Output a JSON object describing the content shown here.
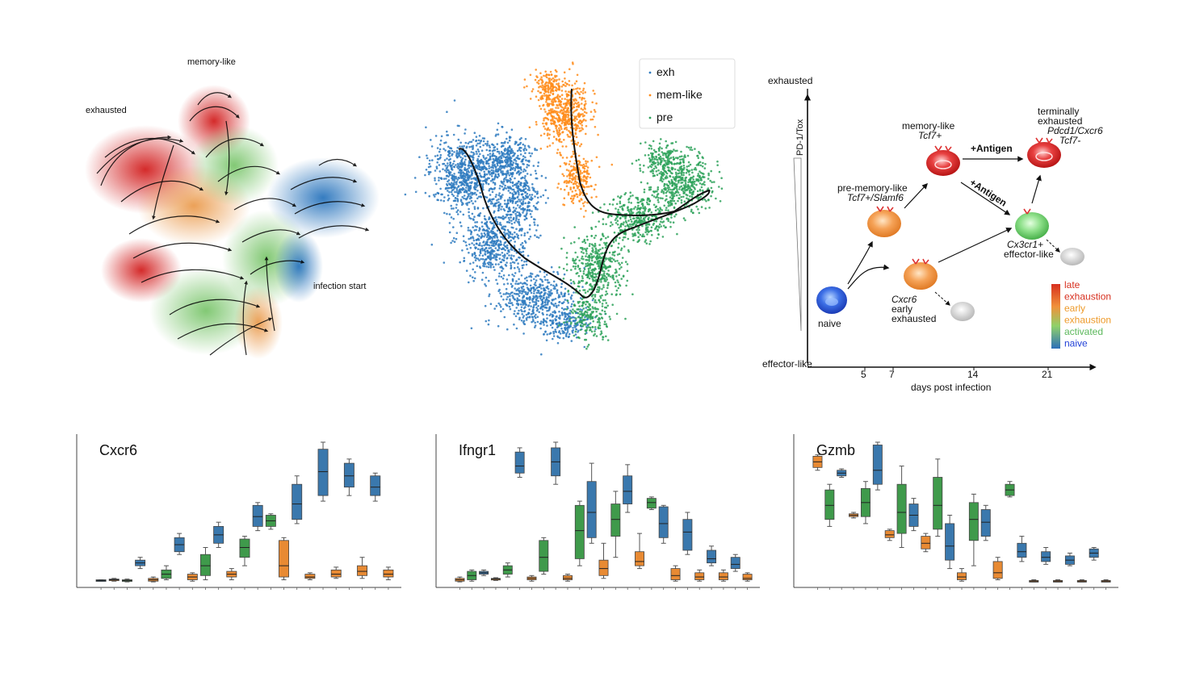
{
  "panels": {
    "velocity": {
      "labels": {
        "memory": "memory-like",
        "exhausted": "exhausted",
        "infection": "infection start"
      }
    },
    "umap": {
      "legend": [
        "exh",
        "mem-like",
        "pre"
      ]
    },
    "scheme": {
      "y_top": "exhausted",
      "y_bottom": "effector-like",
      "y_axis_label": "PD-1/Tox",
      "x_label": "days post infection",
      "x_ticks": [
        "5",
        "7",
        "14",
        "21"
      ],
      "cells": {
        "naive": "naive",
        "pre_mem_1": "pre-memory-like",
        "pre_mem_2": "Tcf7+/Slamf6",
        "mem_1": "memory-like",
        "mem_2": "Tcf7+",
        "term_1": "terminally",
        "term_2": "exhausted",
        "term_3": "Pdcd1/Cxcr6",
        "term_4": "Tcf7-",
        "early_1": "Cxcr6",
        "early_2": "early",
        "early_3": "exhausted",
        "eff_1": "Cx3cr1+",
        "eff_2": "effector-like"
      },
      "arrows": {
        "antigen_top": "+Antigen",
        "antigen_diag": "+Antigen"
      },
      "colorbar": {
        "labels": [
          "late",
          "exhaustion",
          "early",
          "exhaustion",
          "activated",
          "naive"
        ],
        "colors": [
          "#d7301f",
          "#d7301f",
          "#ee9a2a",
          "#ee9a2a",
          "#5cb85c",
          "#1f3fd6"
        ]
      }
    }
  },
  "colors": {
    "blue": "#3a78ad",
    "orange": "#e88a33",
    "green": "#3f9a4b",
    "umap_blue": "#2f7bbf",
    "umap_orange": "#ff8c1a",
    "umap_green": "#2ea25a"
  },
  "chart_data": [
    {
      "type": "box",
      "title": "Cxcr6",
      "ylim": [
        0,
        1
      ],
      "boxes": [
        {
          "c": "blue",
          "q1": 0.01,
          "med": 0.015,
          "q3": 0.02,
          "lo": 0.01,
          "hi": 0.02
        },
        {
          "c": "orange",
          "q1": 0.015,
          "med": 0.02,
          "q3": 0.025,
          "lo": 0.01,
          "hi": 0.03
        },
        {
          "c": "green",
          "q1": 0.01,
          "med": 0.015,
          "q3": 0.02,
          "lo": 0.005,
          "hi": 0.025
        },
        {
          "c": "blue",
          "q1": 0.12,
          "med": 0.14,
          "q3": 0.16,
          "lo": 0.1,
          "hi": 0.18
        },
        {
          "c": "orange",
          "q1": 0.01,
          "med": 0.02,
          "q3": 0.03,
          "lo": 0.005,
          "hi": 0.04
        },
        {
          "c": "green",
          "q1": 0.03,
          "med": 0.06,
          "q3": 0.09,
          "lo": 0.02,
          "hi": 0.12
        },
        {
          "c": "blue",
          "q1": 0.22,
          "med": 0.27,
          "q3": 0.32,
          "lo": 0.2,
          "hi": 0.35
        },
        {
          "c": "orange",
          "q1": 0.02,
          "med": 0.04,
          "q3": 0.06,
          "lo": 0.01,
          "hi": 0.07
        },
        {
          "c": "green",
          "q1": 0.05,
          "med": 0.12,
          "q3": 0.2,
          "lo": 0.02,
          "hi": 0.25
        },
        {
          "c": "blue",
          "q1": 0.28,
          "med": 0.34,
          "q3": 0.4,
          "lo": 0.25,
          "hi": 0.43
        },
        {
          "c": "orange",
          "q1": 0.04,
          "med": 0.06,
          "q3": 0.08,
          "lo": 0.02,
          "hi": 0.1
        },
        {
          "c": "green",
          "q1": 0.18,
          "med": 0.25,
          "q3": 0.31,
          "lo": 0.12,
          "hi": 0.33
        },
        {
          "c": "blue",
          "q1": 0.4,
          "med": 0.47,
          "q3": 0.55,
          "lo": 0.37,
          "hi": 0.57
        },
        {
          "c": "green",
          "q1": 0.4,
          "med": 0.44,
          "q3": 0.48,
          "lo": 0.38,
          "hi": 0.49
        },
        {
          "c": "orange",
          "q1": 0.04,
          "med": 0.12,
          "q3": 0.3,
          "lo": 0.02,
          "hi": 0.32
        },
        {
          "c": "blue",
          "q1": 0.45,
          "med": 0.56,
          "q3": 0.7,
          "lo": 0.42,
          "hi": 0.76
        },
        {
          "c": "orange",
          "q1": 0.03,
          "med": 0.04,
          "q3": 0.06,
          "lo": 0.02,
          "hi": 0.07
        },
        {
          "c": "blue",
          "q1": 0.62,
          "med": 0.79,
          "q3": 0.95,
          "lo": 0.58,
          "hi": 1.0
        },
        {
          "c": "orange",
          "q1": 0.04,
          "med": 0.06,
          "q3": 0.09,
          "lo": 0.03,
          "hi": 0.11
        },
        {
          "c": "blue",
          "q1": 0.68,
          "med": 0.76,
          "q3": 0.85,
          "lo": 0.62,
          "hi": 0.88
        },
        {
          "c": "orange",
          "q1": 0.05,
          "med": 0.08,
          "q3": 0.12,
          "lo": 0.03,
          "hi": 0.18
        },
        {
          "c": "blue",
          "q1": 0.62,
          "med": 0.68,
          "q3": 0.76,
          "lo": 0.58,
          "hi": 0.78
        },
        {
          "c": "orange",
          "q1": 0.04,
          "med": 0.06,
          "q3": 0.09,
          "lo": 0.02,
          "hi": 0.11
        }
      ]
    },
    {
      "type": "box",
      "title": "Ifngr1",
      "ylim": [
        0,
        1
      ],
      "boxes": [
        {
          "c": "orange",
          "q1": 0.01,
          "med": 0.02,
          "q3": 0.03,
          "lo": 0.005,
          "hi": 0.04
        },
        {
          "c": "green",
          "q1": 0.02,
          "med": 0.05,
          "q3": 0.08,
          "lo": 0.01,
          "hi": 0.09
        },
        {
          "c": "blue",
          "q1": 0.06,
          "med": 0.07,
          "q3": 0.08,
          "lo": 0.05,
          "hi": 0.09
        },
        {
          "c": "orange",
          "q1": 0.02,
          "med": 0.025,
          "q3": 0.03,
          "lo": 0.015,
          "hi": 0.035
        },
        {
          "c": "green",
          "q1": 0.06,
          "med": 0.09,
          "q3": 0.12,
          "lo": 0.04,
          "hi": 0.14
        },
        {
          "c": "blue",
          "q1": 0.78,
          "med": 0.83,
          "q3": 0.93,
          "lo": 0.75,
          "hi": 0.96
        },
        {
          "c": "orange",
          "q1": 0.02,
          "med": 0.03,
          "q3": 0.04,
          "lo": 0.01,
          "hi": 0.05
        },
        {
          "c": "green",
          "q1": 0.08,
          "med": 0.18,
          "q3": 0.3,
          "lo": 0.06,
          "hi": 0.32
        },
        {
          "c": "blue",
          "q1": 0.76,
          "med": 0.86,
          "q3": 0.96,
          "lo": 0.7,
          "hi": 1.0
        },
        {
          "c": "orange",
          "q1": 0.02,
          "med": 0.03,
          "q3": 0.05,
          "lo": 0.01,
          "hi": 0.06
        },
        {
          "c": "green",
          "q1": 0.17,
          "med": 0.37,
          "q3": 0.55,
          "lo": 0.12,
          "hi": 0.58
        },
        {
          "c": "blue",
          "q1": 0.32,
          "med": 0.5,
          "q3": 0.72,
          "lo": 0.28,
          "hi": 0.85
        },
        {
          "c": "orange",
          "q1": 0.05,
          "med": 0.1,
          "q3": 0.16,
          "lo": 0.03,
          "hi": 0.28
        },
        {
          "c": "green",
          "q1": 0.33,
          "med": 0.45,
          "q3": 0.56,
          "lo": 0.18,
          "hi": 0.65
        },
        {
          "c": "blue",
          "q1": 0.56,
          "med": 0.65,
          "q3": 0.76,
          "lo": 0.5,
          "hi": 0.84
        },
        {
          "c": "orange",
          "q1": 0.12,
          "med": 0.15,
          "q3": 0.22,
          "lo": 0.1,
          "hi": 0.35
        },
        {
          "c": "green",
          "q1": 0.53,
          "med": 0.57,
          "q3": 0.6,
          "lo": 0.52,
          "hi": 0.61
        },
        {
          "c": "blue",
          "q1": 0.32,
          "med": 0.42,
          "q3": 0.54,
          "lo": 0.28,
          "hi": 0.55
        },
        {
          "c": "orange",
          "q1": 0.02,
          "med": 0.05,
          "q3": 0.1,
          "lo": 0.01,
          "hi": 0.12
        },
        {
          "c": "blue",
          "q1": 0.23,
          "med": 0.36,
          "q3": 0.45,
          "lo": 0.2,
          "hi": 0.5
        },
        {
          "c": "orange",
          "q1": 0.02,
          "med": 0.04,
          "q3": 0.07,
          "lo": 0.01,
          "hi": 0.09
        },
        {
          "c": "blue",
          "q1": 0.14,
          "med": 0.17,
          "q3": 0.23,
          "lo": 0.12,
          "hi": 0.26
        },
        {
          "c": "orange",
          "q1": 0.02,
          "med": 0.04,
          "q3": 0.07,
          "lo": 0.01,
          "hi": 0.09
        },
        {
          "c": "blue",
          "q1": 0.1,
          "med": 0.13,
          "q3": 0.18,
          "lo": 0.08,
          "hi": 0.2
        },
        {
          "c": "orange",
          "q1": 0.02,
          "med": 0.03,
          "q3": 0.06,
          "lo": 0.01,
          "hi": 0.07
        }
      ]
    },
    {
      "type": "box",
      "title": "Gzmb",
      "ylim": [
        0,
        1
      ],
      "boxes": [
        {
          "c": "orange",
          "q1": 0.82,
          "med": 0.86,
          "q3": 0.9,
          "lo": 0.8,
          "hi": 0.91
        },
        {
          "c": "green",
          "q1": 0.45,
          "med": 0.55,
          "q3": 0.66,
          "lo": 0.4,
          "hi": 0.7
        },
        {
          "c": "blue",
          "q1": 0.76,
          "med": 0.78,
          "q3": 0.8,
          "lo": 0.75,
          "hi": 0.81
        },
        {
          "c": "orange",
          "q1": 0.47,
          "med": 0.48,
          "q3": 0.49,
          "lo": 0.46,
          "hi": 0.5
        },
        {
          "c": "green",
          "q1": 0.47,
          "med": 0.57,
          "q3": 0.67,
          "lo": 0.42,
          "hi": 0.72
        },
        {
          "c": "blue",
          "q1": 0.7,
          "med": 0.8,
          "q3": 0.98,
          "lo": 0.66,
          "hi": 1.0
        },
        {
          "c": "orange",
          "q1": 0.32,
          "med": 0.34,
          "q3": 0.37,
          "lo": 0.3,
          "hi": 0.38
        },
        {
          "c": "green",
          "q1": 0.35,
          "med": 0.5,
          "q3": 0.7,
          "lo": 0.25,
          "hi": 0.83
        },
        {
          "c": "blue",
          "q1": 0.4,
          "med": 0.48,
          "q3": 0.56,
          "lo": 0.37,
          "hi": 0.6
        },
        {
          "c": "orange",
          "q1": 0.24,
          "med": 0.28,
          "q3": 0.33,
          "lo": 0.22,
          "hi": 0.35
        },
        {
          "c": "green",
          "q1": 0.38,
          "med": 0.55,
          "q3": 0.75,
          "lo": 0.33,
          "hi": 0.88
        },
        {
          "c": "blue",
          "q1": 0.16,
          "med": 0.26,
          "q3": 0.42,
          "lo": 0.1,
          "hi": 0.48
        },
        {
          "c": "orange",
          "q1": 0.02,
          "med": 0.04,
          "q3": 0.07,
          "lo": 0.01,
          "hi": 0.1
        },
        {
          "c": "green",
          "q1": 0.3,
          "med": 0.45,
          "q3": 0.57,
          "lo": 0.12,
          "hi": 0.63
        },
        {
          "c": "blue",
          "q1": 0.33,
          "med": 0.43,
          "q3": 0.52,
          "lo": 0.3,
          "hi": 0.55
        },
        {
          "c": "orange",
          "q1": 0.03,
          "med": 0.07,
          "q3": 0.15,
          "lo": 0.02,
          "hi": 0.18
        },
        {
          "c": "green",
          "q1": 0.62,
          "med": 0.66,
          "q3": 0.7,
          "lo": 0.61,
          "hi": 0.72
        },
        {
          "c": "blue",
          "q1": 0.18,
          "med": 0.22,
          "q3": 0.28,
          "lo": 0.15,
          "hi": 0.33
        },
        {
          "c": "orange",
          "q1": 0.005,
          "med": 0.01,
          "q3": 0.015,
          "lo": 0.005,
          "hi": 0.02
        },
        {
          "c": "blue",
          "q1": 0.15,
          "med": 0.18,
          "q3": 0.22,
          "lo": 0.13,
          "hi": 0.25
        },
        {
          "c": "orange",
          "q1": 0.005,
          "med": 0.01,
          "q3": 0.015,
          "lo": 0.005,
          "hi": 0.02
        },
        {
          "c": "blue",
          "q1": 0.13,
          "med": 0.16,
          "q3": 0.19,
          "lo": 0.12,
          "hi": 0.21
        },
        {
          "c": "orange",
          "q1": 0.005,
          "med": 0.01,
          "q3": 0.015,
          "lo": 0.005,
          "hi": 0.02
        },
        {
          "c": "blue",
          "q1": 0.18,
          "med": 0.21,
          "q3": 0.24,
          "lo": 0.16,
          "hi": 0.25
        },
        {
          "c": "orange",
          "q1": 0.005,
          "med": 0.01,
          "q3": 0.015,
          "lo": 0.005,
          "hi": 0.02
        }
      ]
    }
  ]
}
